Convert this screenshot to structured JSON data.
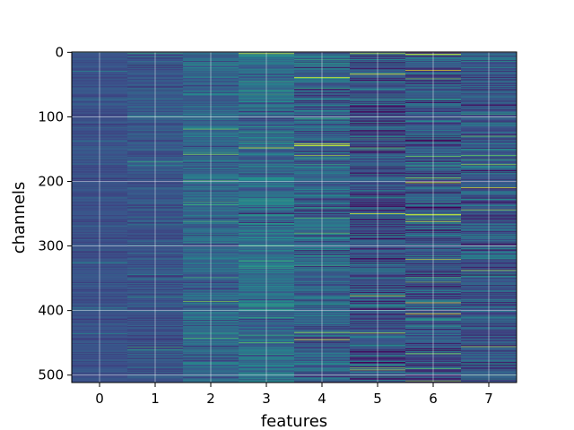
{
  "chart_data": {
    "type": "heatmap",
    "title": "",
    "xlabel": "features",
    "ylabel": "channels",
    "colormap": "viridis",
    "grid": true,
    "n_rows": 512,
    "n_cols": 8,
    "x_ticks": [
      "0",
      "1",
      "2",
      "3",
      "4",
      "5",
      "6",
      "7"
    ],
    "y_ticks": [
      "0",
      "100",
      "200",
      "300",
      "400",
      "500"
    ],
    "y_tick_values": [
      0,
      100,
      200,
      300,
      400,
      500
    ],
    "column_stats": [
      {
        "feature": 0,
        "base": 0.25,
        "spread": 0.07
      },
      {
        "feature": 1,
        "base": 0.26,
        "spread": 0.1
      },
      {
        "feature": 2,
        "base": 0.33,
        "spread": 0.16
      },
      {
        "feature": 3,
        "base": 0.36,
        "spread": 0.2
      },
      {
        "feature": 4,
        "base": 0.32,
        "spread": 0.22
      },
      {
        "feature": 5,
        "base": 0.25,
        "spread": 0.26
      },
      {
        "feature": 6,
        "base": 0.27,
        "spread": 0.24
      },
      {
        "feature": 7,
        "base": 0.28,
        "spread": 0.22
      }
    ],
    "highlights": [
      {
        "row": 2,
        "col": 5,
        "value": 0.9
      },
      {
        "row": 4,
        "col": 6,
        "value": 0.75
      },
      {
        "row": 40,
        "col": 4,
        "value": 0.7
      },
      {
        "row": 100,
        "col": 1,
        "value": 0.55
      },
      {
        "row": 148,
        "col": 5,
        "value": 0.75
      },
      {
        "row": 155,
        "col": 2,
        "value": 0.6
      },
      {
        "row": 170,
        "col": 1,
        "value": 0.6
      },
      {
        "row": 250,
        "col": 5,
        "value": 0.95
      },
      {
        "row": 252,
        "col": 6,
        "value": 0.9
      },
      {
        "row": 280,
        "col": 4,
        "value": 0.75
      },
      {
        "row": 300,
        "col": 3,
        "value": 0.65
      },
      {
        "row": 338,
        "col": 7,
        "value": 0.85
      },
      {
        "row": 388,
        "col": 6,
        "value": 0.95
      },
      {
        "row": 435,
        "col": 5,
        "value": 0.9
      },
      {
        "row": 457,
        "col": 1,
        "value": 0.6
      },
      {
        "row": 490,
        "col": 6,
        "value": 0.7
      },
      {
        "row": 500,
        "col": 7,
        "value": 0.6
      }
    ]
  }
}
